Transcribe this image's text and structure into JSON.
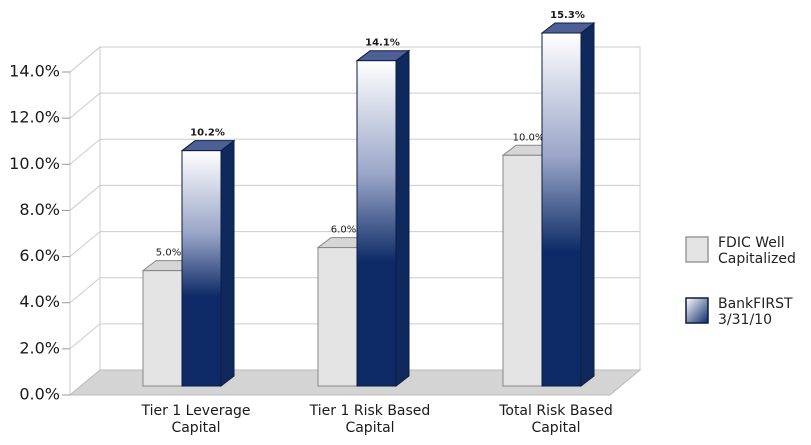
{
  "chart_data": {
    "type": "bar3d",
    "categories": [
      "Tier 1 Leverage Capital",
      "Tier 1 Risk Based Capital",
      "Total Risk Based Capital"
    ],
    "series": [
      {
        "name": "FDIC Well Capitalized",
        "color": "#e4e4e4",
        "values": [
          5.0,
          6.0,
          10.0
        ],
        "value_labels": [
          "5.0%",
          "6.0%",
          "10.0%"
        ]
      },
      {
        "name": "BankFIRST 3/31/10",
        "color": "#0d2a66",
        "values": [
          10.2,
          14.1,
          15.3
        ],
        "value_labels": [
          "10.2%",
          "14.1%",
          "15.3%"
        ]
      }
    ],
    "ylim": [
      0,
      14
    ],
    "yticks": [
      {
        "value": 0,
        "label": "0.0%"
      },
      {
        "value": 2,
        "label": "2.0%"
      },
      {
        "value": 4,
        "label": "4.0%"
      },
      {
        "value": 6,
        "label": "6.0%"
      },
      {
        "value": 8,
        "label": "8.0%"
      },
      {
        "value": 10,
        "label": "10.0%"
      },
      {
        "value": 12,
        "label": "12.0%"
      },
      {
        "value": 14,
        "label": "14.0%"
      }
    ],
    "grid": true,
    "legend": "right"
  }
}
